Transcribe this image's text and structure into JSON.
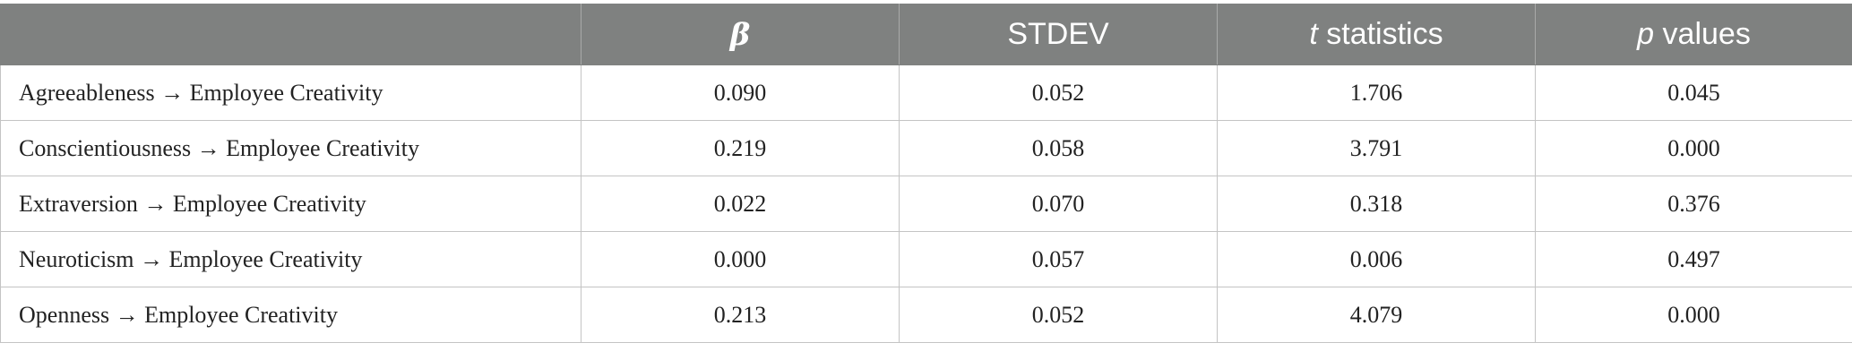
{
  "table": {
    "headers": [
      {
        "text": "β",
        "style": "beta"
      },
      {
        "text": "STDEV",
        "style": "plain"
      },
      {
        "prefix": "t",
        "suffix": " statistics",
        "style": "italic-prefix"
      },
      {
        "prefix": "p",
        "suffix": " values",
        "style": "italic-prefix"
      }
    ],
    "header_background": "#7f8180",
    "header_text_color": "#ffffff",
    "rows": [
      {
        "path": "Agreeableness → Employee Creativity",
        "beta": "0.090",
        "stdev": "0.052",
        "t": "1.706",
        "p": "0.045"
      },
      {
        "path": "Conscientiousness → Employee Creativity",
        "beta": "0.219",
        "stdev": "0.058",
        "t": "3.791",
        "p": "0.000"
      },
      {
        "path": "Extraversion → Employee Creativity",
        "beta": "0.022",
        "stdev": "0.070",
        "t": "0.318",
        "p": "0.376"
      },
      {
        "path": "Neuroticism → Employee Creativity",
        "beta": "0.000",
        "stdev": "0.057",
        "t": "0.006",
        "p": "0.497"
      },
      {
        "path": "Openness → Employee Creativity",
        "beta": "0.213",
        "stdev": "0.052",
        "t": "4.079",
        "p": "0.000"
      }
    ]
  }
}
